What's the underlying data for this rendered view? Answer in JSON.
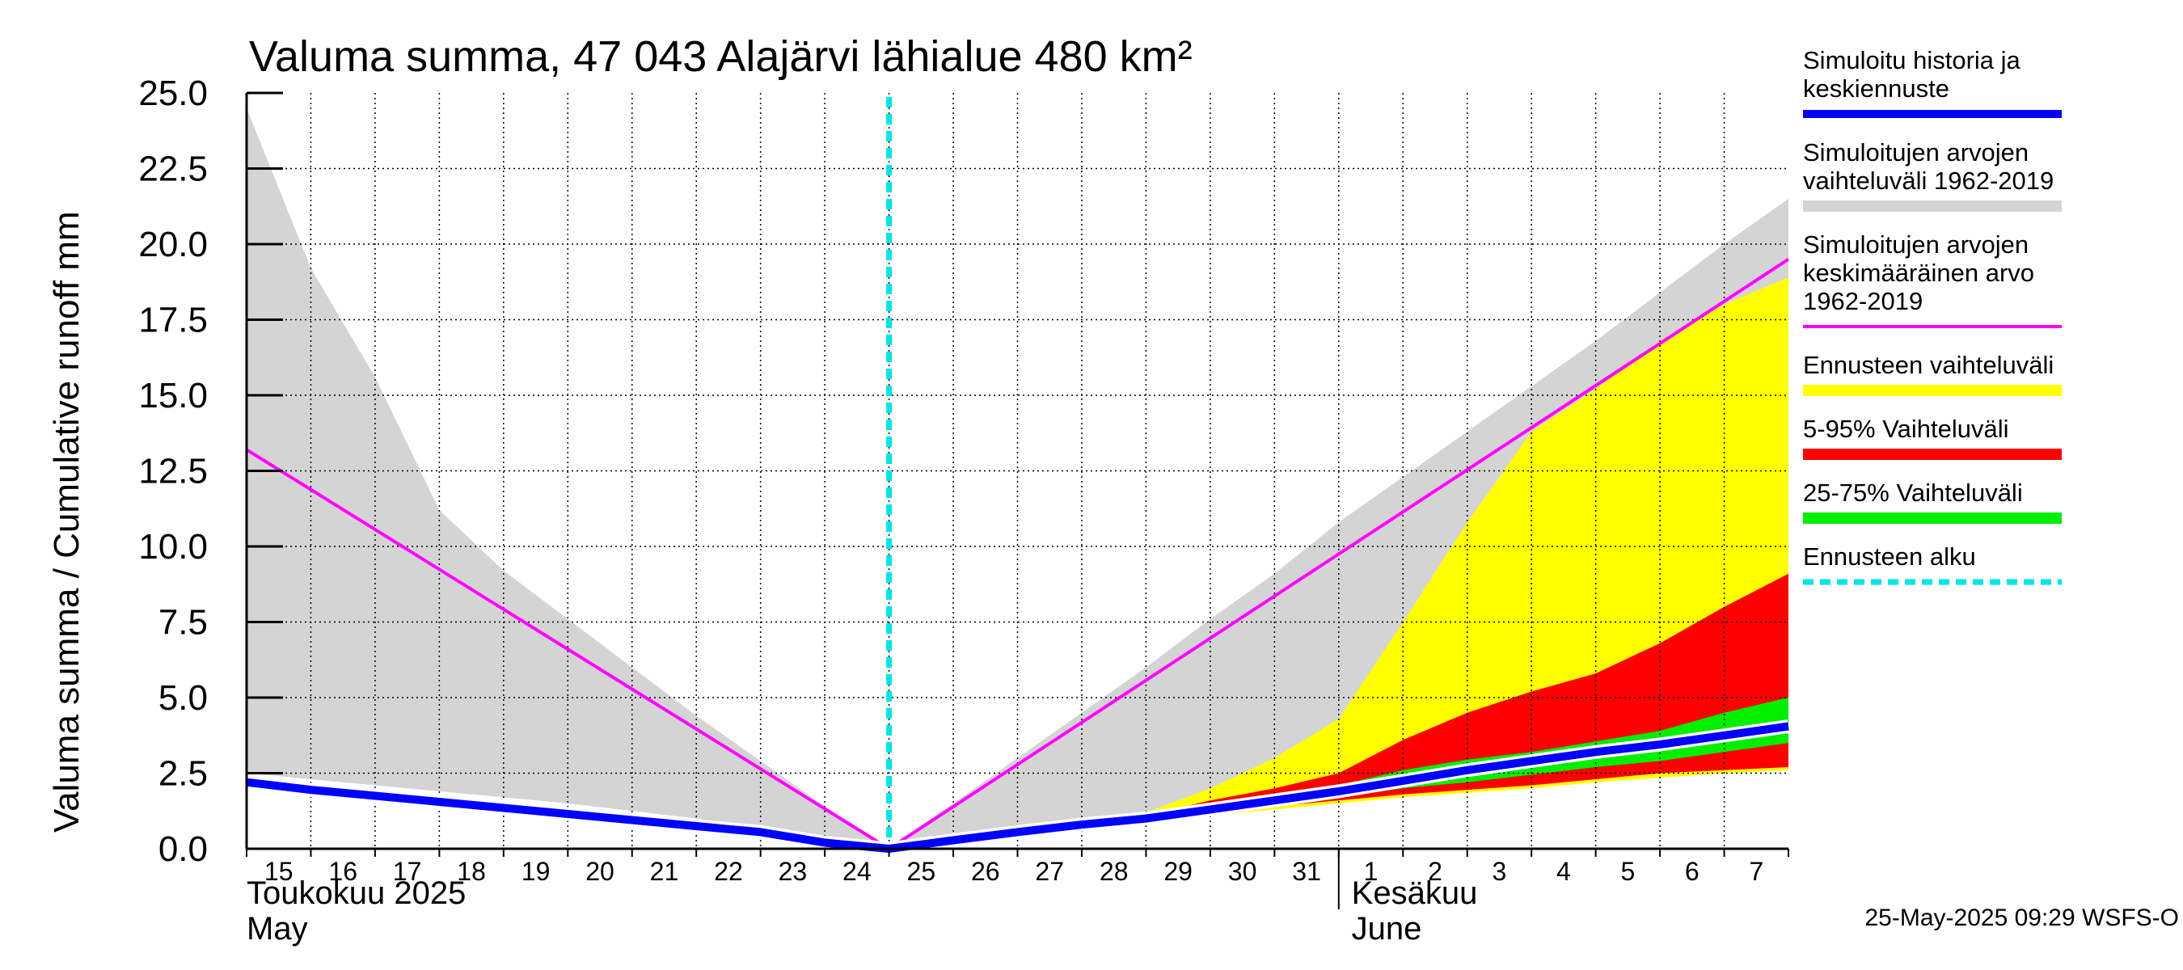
{
  "chart_data": {
    "type": "area",
    "title": "Valuma summa, 47 043 Alajärvi lähialue 480 km²",
    "ylabel": "Valuma summa / Cumulative runoff    mm",
    "ylim": [
      0,
      25
    ],
    "yticks": [
      "0.0",
      "2.5",
      "5.0",
      "7.5",
      "10.0",
      "12.5",
      "15.0",
      "17.5",
      "20.0",
      "22.5",
      "25.0"
    ],
    "x_start": "2025-05-15",
    "x_end": "2025-06-08",
    "x_tick_labels": [
      "15",
      "16",
      "17",
      "18",
      "19",
      "20",
      "21",
      "22",
      "23",
      "24",
      "25",
      "26",
      "27",
      "28",
      "29",
      "30",
      "31",
      "1",
      "2",
      "3",
      "4",
      "5",
      "6",
      "7"
    ],
    "month_labels": [
      {
        "line1": "Toukokuu  2025",
        "line2": "May",
        "date": "2025-05-15"
      },
      {
        "line1": "Kesäkuu",
        "line2": "June",
        "date": "2025-06-02"
      }
    ],
    "month_divider_date": "2025-06-01",
    "forecast_start": "2025-05-25",
    "grid": true,
    "legend_position": "right",
    "timestamp": "25-May-2025 09:29 WSFS-O",
    "series": [
      {
        "name": "Simuloitujen arvojen vaihteluväli 1962-2019",
        "kind": "band",
        "color": "#d4d4d4",
        "x": [
          "2025-05-15",
          "2025-05-16",
          "2025-05-17",
          "2025-05-18",
          "2025-05-19",
          "2025-05-20",
          "2025-05-21",
          "2025-05-22",
          "2025-05-23",
          "2025-05-24",
          "2025-05-25",
          "2025-05-26",
          "2025-05-27",
          "2025-05-28",
          "2025-05-29",
          "2025-05-30",
          "2025-05-31",
          "2025-06-01",
          "2025-06-02",
          "2025-06-03",
          "2025-06-04",
          "2025-06-05",
          "2025-06-06",
          "2025-06-07",
          "2025-06-08"
        ],
        "low": [
          2.5,
          2.3,
          2.1,
          1.9,
          1.7,
          1.5,
          1.25,
          1.0,
          0.7,
          0.35,
          0.0,
          0.25,
          0.5,
          0.75,
          1.0,
          1.25,
          1.5,
          1.75,
          2.0,
          2.25,
          2.5,
          2.75,
          3.0,
          3.25,
          3.5
        ],
        "high": [
          24.5,
          19.2,
          15.6,
          11.2,
          9.2,
          7.6,
          6.0,
          4.4,
          2.9,
          1.4,
          0.0,
          1.5,
          3.0,
          4.5,
          6.0,
          7.6,
          9.1,
          10.8,
          12.3,
          13.8,
          15.3,
          16.8,
          18.4,
          20.0,
          21.5
        ]
      },
      {
        "name": "Simuloitujen arvojen keskimääräinen arvo 1962-2019",
        "kind": "line",
        "color": "#ff00ff",
        "x": [
          "2025-05-15",
          "2025-05-25",
          "2025-06-08"
        ],
        "values": [
          13.2,
          0.0,
          19.5
        ]
      },
      {
        "name": "Ennusteen vaihteluväli",
        "kind": "band",
        "color": "#ffff00",
        "x": [
          "2025-05-25",
          "2025-05-26",
          "2025-05-27",
          "2025-05-28",
          "2025-05-29",
          "2025-05-30",
          "2025-05-31",
          "2025-06-01",
          "2025-06-02",
          "2025-06-03",
          "2025-06-04",
          "2025-06-05",
          "2025-06-06",
          "2025-06-07",
          "2025-06-08"
        ],
        "low": [
          0.0,
          0.25,
          0.5,
          0.75,
          0.95,
          1.1,
          1.3,
          1.5,
          1.7,
          1.85,
          2.0,
          2.2,
          2.35,
          2.5,
          2.6
        ],
        "high": [
          0.0,
          0.3,
          0.6,
          0.9,
          1.2,
          2.0,
          3.0,
          4.3,
          7.5,
          10.8,
          13.8,
          15.2,
          16.8,
          18.0,
          18.9
        ]
      },
      {
        "name": "5-95% Vaihteluväli",
        "kind": "band",
        "color": "#ff0000",
        "x": [
          "2025-05-25",
          "2025-05-26",
          "2025-05-27",
          "2025-05-28",
          "2025-05-29",
          "2025-05-30",
          "2025-05-31",
          "2025-06-01",
          "2025-06-02",
          "2025-06-03",
          "2025-06-04",
          "2025-06-05",
          "2025-06-06",
          "2025-06-07",
          "2025-06-08"
        ],
        "low": [
          0.0,
          0.28,
          0.55,
          0.8,
          1.0,
          1.2,
          1.4,
          1.6,
          1.8,
          1.95,
          2.1,
          2.3,
          2.5,
          2.6,
          2.7
        ],
        "high": [
          0.0,
          0.3,
          0.6,
          0.85,
          1.1,
          1.6,
          2.0,
          2.5,
          3.6,
          4.5,
          5.2,
          5.8,
          6.8,
          8.0,
          9.1
        ]
      },
      {
        "name": "25-75% Vaihteluväli",
        "kind": "band",
        "color": "#00ee00",
        "x": [
          "2025-05-25",
          "2025-05-26",
          "2025-05-27",
          "2025-05-28",
          "2025-05-29",
          "2025-05-30",
          "2025-05-31",
          "2025-06-01",
          "2025-06-02",
          "2025-06-03",
          "2025-06-04",
          "2025-06-05",
          "2025-06-06",
          "2025-06-07",
          "2025-06-08"
        ],
        "low": [
          0.0,
          0.28,
          0.55,
          0.8,
          1.0,
          1.25,
          1.5,
          1.7,
          2.0,
          2.2,
          2.45,
          2.7,
          2.9,
          3.2,
          3.5
        ],
        "high": [
          0.0,
          0.3,
          0.6,
          0.85,
          1.1,
          1.45,
          1.8,
          2.1,
          2.6,
          2.95,
          3.2,
          3.55,
          3.9,
          4.5,
          5.0
        ]
      },
      {
        "name": "Simuloitu historia ja keskiennuste",
        "kind": "line",
        "color": "#0000ff",
        "x": [
          "2025-05-15",
          "2025-05-16",
          "2025-05-17",
          "2025-05-18",
          "2025-05-19",
          "2025-05-20",
          "2025-05-21",
          "2025-05-22",
          "2025-05-23",
          "2025-05-24",
          "2025-05-25",
          "2025-05-26",
          "2025-05-27",
          "2025-05-28",
          "2025-05-29",
          "2025-05-30",
          "2025-05-31",
          "2025-06-01",
          "2025-06-02",
          "2025-06-03",
          "2025-06-04",
          "2025-06-05",
          "2025-06-06",
          "2025-06-07",
          "2025-06-08"
        ],
        "values": [
          2.2,
          1.95,
          1.75,
          1.55,
          1.35,
          1.15,
          0.95,
          0.75,
          0.55,
          0.2,
          0.0,
          0.28,
          0.55,
          0.8,
          1.0,
          1.3,
          1.6,
          1.9,
          2.25,
          2.6,
          2.9,
          3.2,
          3.45,
          3.75,
          4.05
        ]
      }
    ],
    "legend_items": [
      {
        "label": "Simuloitu historia ja keskiennuste",
        "color": "#0000ff",
        "style": "line"
      },
      {
        "label": "Simuloitujen arvojen vaihteluväli 1962-2019",
        "color": "#d4d4d4",
        "style": "band"
      },
      {
        "label": "Simuloitujen arvojen keskimääräinen arvo   1962-2019",
        "color": "#ff00ff",
        "style": "thin"
      },
      {
        "label": "Ennusteen vaihteluväli",
        "color": "#ffff00",
        "style": "band"
      },
      {
        "label": "5-95% Vaihteluväli",
        "color": "#ff0000",
        "style": "band"
      },
      {
        "label": "25-75% Vaihteluväli",
        "color": "#00ee00",
        "style": "band"
      },
      {
        "label": "Ennusteen alku",
        "color": "#00e5e5",
        "style": "dashed"
      }
    ]
  }
}
